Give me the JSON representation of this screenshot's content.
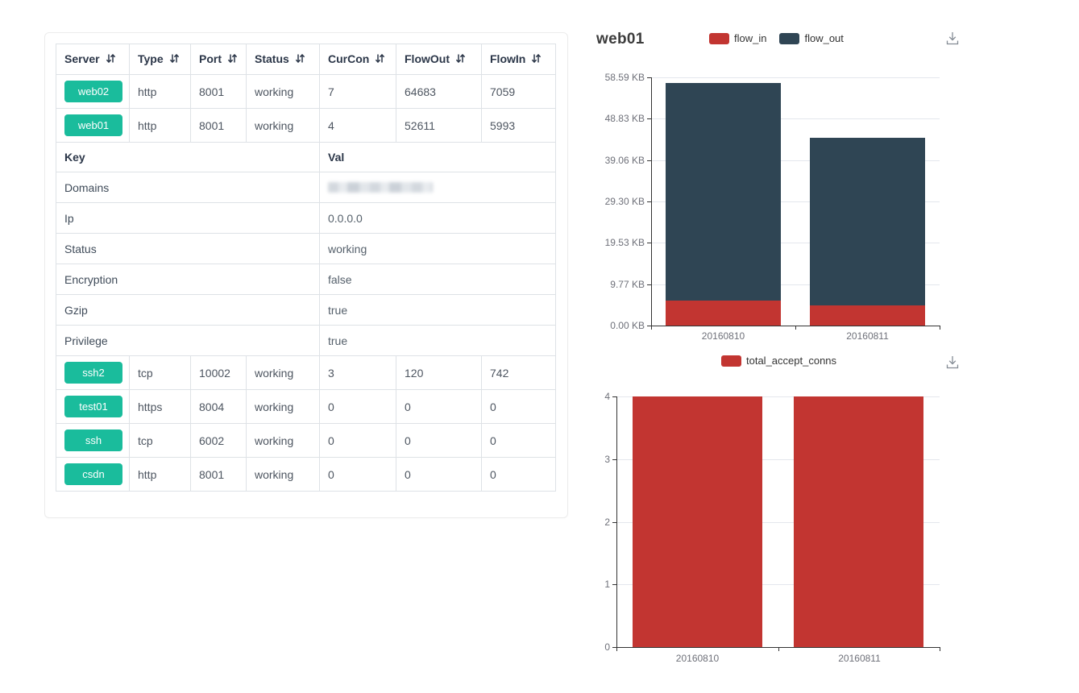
{
  "colors": {
    "badge_green": "#1abc9c",
    "flow_in_red": "#c23531",
    "flow_out_slate": "#2f4554",
    "table_border": "#dee2e6",
    "axis": "#333333",
    "grid": "#e4e7ed",
    "axis_label": "#6e7079"
  },
  "icons": {
    "sort": "sort-arrows-icon (down+up arrows)",
    "download": "download-icon (arrow into tray)"
  },
  "table": {
    "columns": [
      {
        "label": "Server",
        "sortable": true
      },
      {
        "label": "Type",
        "sortable": true
      },
      {
        "label": "Port",
        "sortable": true
      },
      {
        "label": "Status",
        "sortable": true
      },
      {
        "label": "CurCon",
        "sortable": true
      },
      {
        "label": "FlowOut",
        "sortable": true
      },
      {
        "label": "FlowIn",
        "sortable": true
      }
    ],
    "server_rows_top": [
      {
        "server": "web02",
        "type": "http",
        "port": "8001",
        "status": "working",
        "curcon": "7",
        "flowout": "64683",
        "flowin": "7059"
      },
      {
        "server": "web01",
        "type": "http",
        "port": "8001",
        "status": "working",
        "curcon": "4",
        "flowout": "52611",
        "flowin": "5993"
      }
    ],
    "kv": {
      "key_header": "Key",
      "val_header": "Val",
      "rows": [
        {
          "key": "Domains",
          "val": "",
          "redacted": true
        },
        {
          "key": "Ip",
          "val": "0.0.0.0",
          "redacted": false
        },
        {
          "key": "Status",
          "val": "working",
          "redacted": false
        },
        {
          "key": "Encryption",
          "val": "false",
          "redacted": false
        },
        {
          "key": "Gzip",
          "val": "true",
          "redacted": false
        },
        {
          "key": "Privilege",
          "val": "true",
          "redacted": false
        }
      ]
    },
    "server_rows_bottom": [
      {
        "server": "ssh2",
        "type": "tcp",
        "port": "10002",
        "status": "working",
        "curcon": "3",
        "flowout": "120",
        "flowin": "742"
      },
      {
        "server": "test01",
        "type": "https",
        "port": "8004",
        "status": "working",
        "curcon": "0",
        "flowout": "0",
        "flowin": "0"
      },
      {
        "server": "ssh",
        "type": "tcp",
        "port": "6002",
        "status": "working",
        "curcon": "0",
        "flowout": "0",
        "flowin": "0"
      },
      {
        "server": "csdn",
        "type": "http",
        "port": "8001",
        "status": "working",
        "curcon": "0",
        "flowout": "0",
        "flowin": "0"
      }
    ]
  },
  "chart_data": [
    {
      "type": "bar",
      "stacked": true,
      "title": "web01",
      "categories": [
        "20160810",
        "20160811"
      ],
      "series": [
        {
          "name": "flow_in",
          "color": "#c23531",
          "values": [
            5.85,
            4.7
          ]
        },
        {
          "name": "flow_out",
          "color": "#2f4554",
          "values": [
            51.38,
            39.65
          ]
        }
      ],
      "unit": "KB",
      "ylim": [
        0,
        58.59
      ],
      "ytick_labels": [
        "58.59 KB",
        "48.83 KB",
        "39.06 KB",
        "29.30 KB",
        "19.53 KB",
        "9.77 KB",
        "0.00 KB"
      ],
      "legend_position": "top-center",
      "grid": true,
      "has_download_button": true
    },
    {
      "type": "bar",
      "stacked": false,
      "title": "",
      "categories": [
        "20160810",
        "20160811"
      ],
      "series": [
        {
          "name": "total_accept_conns",
          "color": "#c23531",
          "values": [
            4,
            4
          ]
        }
      ],
      "unit": "",
      "ylim": [
        0,
        4
      ],
      "ytick_labels": [
        "4",
        "3",
        "2",
        "1",
        "0"
      ],
      "legend_position": "top-center",
      "grid": true,
      "has_download_button": true
    }
  ]
}
